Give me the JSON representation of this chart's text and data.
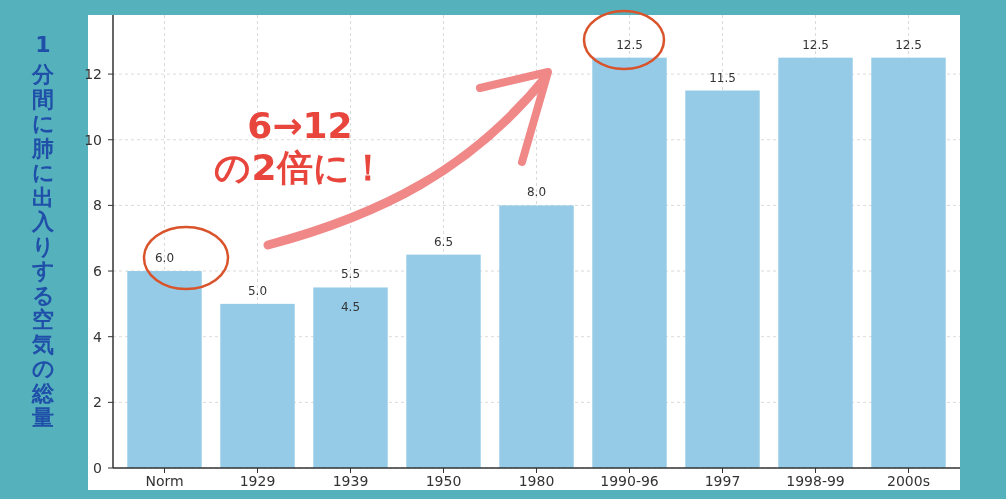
{
  "chart_data": {
    "type": "bar",
    "ylabel": "1分間に肺に出入りする空気の総量",
    "categories": [
      "Norm",
      "1929",
      "1939",
      "1950",
      "1980",
      "1990-96",
      "1997",
      "1998-99",
      "2000s"
    ],
    "values": [
      6.0,
      5.0,
      5.5,
      6.5,
      8.0,
      12.5,
      11.5,
      12.5,
      12.5
    ],
    "color": "#95cbe7",
    "value_labels": [
      "6.0",
      "5.0",
      "5.5",
      "6.5",
      "8.0",
      "12.5",
      "11.5",
      "12.5",
      "12.5"
    ],
    "ylim": [
      0,
      13.8
    ],
    "yticks": [
      0,
      2,
      4,
      6,
      8,
      10,
      12
    ],
    "grid": true,
    "annotations": [
      "4.5",
      "6→12\nの2倍に！"
    ]
  }
}
